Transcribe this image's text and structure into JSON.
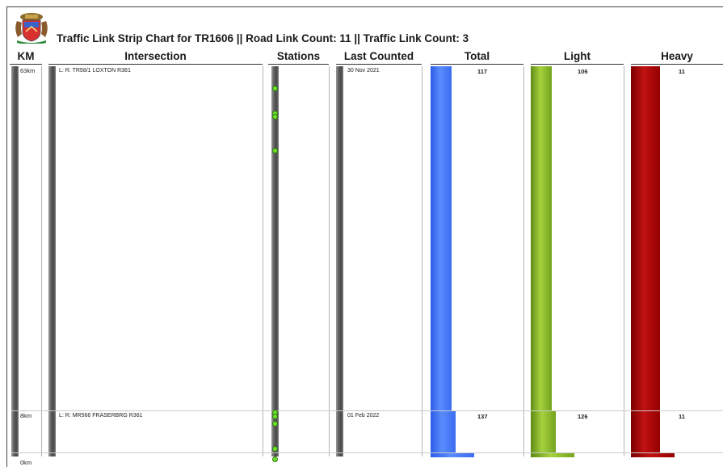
{
  "header": {
    "title": "Traffic Link Strip Chart for TR1606 || Road Link Count: 11 || Traffic Link Count: 3"
  },
  "columns": {
    "km": "KM",
    "intersection": "Intersection",
    "stations": "Stations",
    "last_counted": "Last Counted",
    "total": "Total",
    "light": "Light",
    "heavy": "Heavy"
  },
  "km_axis": {
    "top_label": "63km",
    "mid_label": "8km",
    "bottom_label": "0km"
  },
  "rows": [
    {
      "km": 63,
      "intersection": "L:  R: TR58/1 LOXTON R381",
      "last_counted": "30 Nov 2021",
      "total": 117,
      "light": 106,
      "heavy": 11
    },
    {
      "km": 8,
      "intersection": "L:  R: MR566 FRASERBRG R361",
      "last_counted": "01 Feb 2022",
      "total": 137,
      "light": 126,
      "heavy": 11
    }
  ],
  "colors": {
    "total": "#3a6cf0",
    "light": "#8cc02e",
    "heavy": "#b00000",
    "station_dot": "#6ee02a"
  }
}
